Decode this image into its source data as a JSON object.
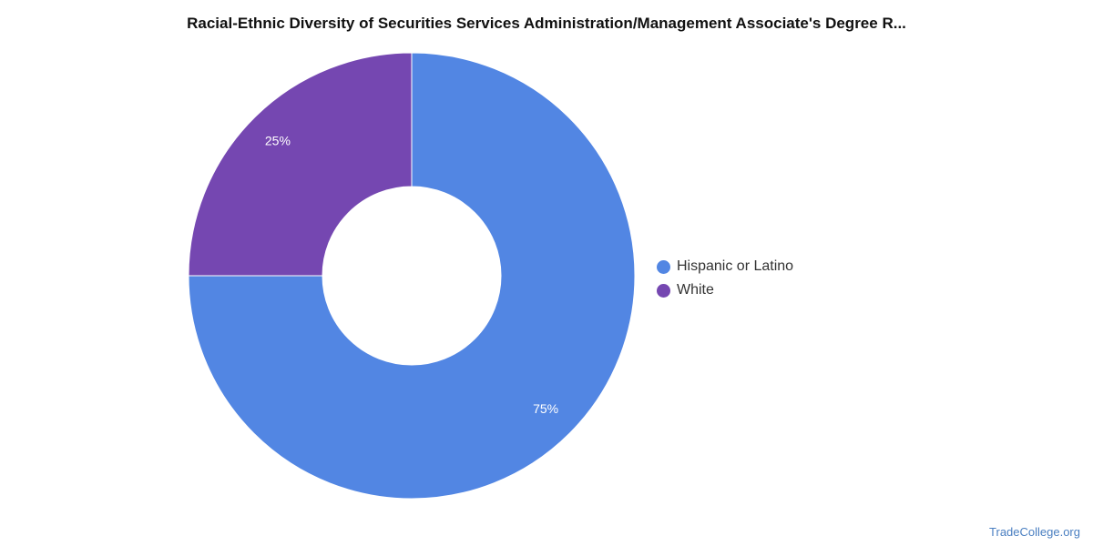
{
  "title": "Racial-Ethnic Diversity of Securities Services Administration/Management Associate's Degree R...",
  "source": "TradeCollege.org",
  "chart_data": {
    "type": "pie",
    "variant": "donut",
    "title": "Racial-Ethnic Diversity of Securities Services Administration/Management Associate's Degree R...",
    "slices": [
      {
        "name": "Hispanic or Latino",
        "value": 75,
        "label": "75%",
        "color": "#5286e3"
      },
      {
        "name": "White",
        "value": 25,
        "label": "25%",
        "color": "#7547b1"
      }
    ],
    "legend_position": "right"
  }
}
